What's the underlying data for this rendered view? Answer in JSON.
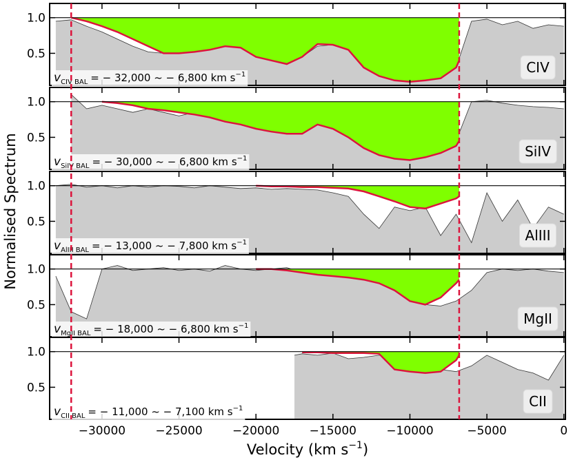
{
  "chart_data": [
    {
      "type": "area",
      "label": "CIV",
      "annotation": {
        "symbol": "v",
        "subscript": "CIV BAL",
        "text": "= − 32,000 ~ − 6,800 km s",
        "superscript": "−1"
      },
      "ylim": [
        0.05,
        1.2
      ],
      "yticks": [
        {
          "value": 0.5,
          "label": "0.5"
        },
        {
          "value": 1,
          "label": "1.0"
        }
      ],
      "continuum": 1,
      "vlines": [
        -32000,
        -6800
      ],
      "vline_color": "#dc143c",
      "spectrum_color": "#cccccc",
      "bal_color": "#7fff00",
      "bal_line_color": "#dc143c",
      "x": [
        -33000,
        -32000,
        -31000,
        -30000,
        -29000,
        -28000,
        -27000,
        -26000,
        -25000,
        -24000,
        -23000,
        -22000,
        -21000,
        -20000,
        -19000,
        -18000,
        -17000,
        -16000,
        -15000,
        -14000,
        -13000,
        -12000,
        -11000,
        -10000,
        -9000,
        -8000,
        -7000,
        -6000,
        -5000,
        -4000,
        -3000,
        -2000,
        -1000,
        0
      ],
      "values": [
        0.95,
        0.97,
        0.88,
        0.8,
        0.7,
        0.6,
        0.52,
        0.5,
        0.5,
        0.55,
        0.55,
        0.6,
        0.58,
        0.45,
        0.4,
        0.35,
        0.45,
        0.6,
        0.62,
        0.55,
        0.3,
        0.18,
        0.12,
        0.1,
        0.12,
        0.15,
        0.3,
        0.95,
        0.98,
        0.9,
        0.95,
        0.85,
        0.9,
        0.88
      ],
      "bal_x": [
        -32000,
        -31000,
        -30000,
        -29000,
        -28000,
        -27000,
        -26000,
        -25000,
        -24000,
        -23000,
        -22000,
        -21000,
        -20000,
        -19000,
        -18000,
        -17000,
        -16000,
        -15000,
        -14000,
        -13000,
        -12000,
        -11000,
        -10000,
        -9000,
        -8000,
        -7000,
        -6800
      ],
      "bal_values": [
        1.0,
        0.95,
        0.88,
        0.8,
        0.7,
        0.6,
        0.5,
        0.5,
        0.52,
        0.55,
        0.6,
        0.58,
        0.45,
        0.4,
        0.35,
        0.45,
        0.63,
        0.62,
        0.55,
        0.3,
        0.18,
        0.12,
        0.1,
        0.12,
        0.15,
        0.3,
        0.4
      ]
    },
    {
      "type": "area",
      "label": "SiIV",
      "annotation": {
        "symbol": "v",
        "subscript": "SiIV BAL",
        "text": "= − 30,000 ~ − 6,800 km s",
        "superscript": "−1"
      },
      "ylim": [
        0.05,
        1.2
      ],
      "yticks": [
        {
          "value": 0.5,
          "label": "0.5"
        },
        {
          "value": 1,
          "label": "1.0"
        }
      ],
      "continuum": 1,
      "spectrum_color": "#cccccc",
      "bal_color": "#7fff00",
      "bal_line_color": "#dc143c",
      "x": [
        -33000,
        -32000,
        -31000,
        -30000,
        -29000,
        -28000,
        -27000,
        -26000,
        -25000,
        -24000,
        -23000,
        -22000,
        -21000,
        -20000,
        -19000,
        -18000,
        -17000,
        -16000,
        -15000,
        -14000,
        -13000,
        -12000,
        -11000,
        -10000,
        -9000,
        -8000,
        -7000,
        -6000,
        -5000,
        -4000,
        -3000,
        -2000,
        -1000,
        0
      ],
      "values": [
        null,
        1.1,
        0.9,
        0.95,
        0.9,
        0.85,
        0.9,
        0.85,
        0.8,
        0.85,
        0.8,
        0.75,
        0.7,
        0.65,
        0.6,
        0.55,
        0.55,
        0.7,
        0.65,
        0.55,
        0.35,
        0.25,
        0.2,
        0.2,
        0.25,
        0.3,
        0.45,
        1.0,
        1.02,
        0.98,
        0.95,
        0.93,
        0.92,
        0.9
      ],
      "bal_x": [
        -30000,
        -29000,
        -28000,
        -27000,
        -26000,
        -25000,
        -24000,
        -23000,
        -22000,
        -21000,
        -20000,
        -19000,
        -18000,
        -17000,
        -16000,
        -15000,
        -14000,
        -13000,
        -12000,
        -11000,
        -10000,
        -9000,
        -8000,
        -7000,
        -6800
      ],
      "bal_values": [
        1.0,
        0.98,
        0.95,
        0.9,
        0.88,
        0.85,
        0.82,
        0.78,
        0.72,
        0.68,
        0.62,
        0.58,
        0.55,
        0.55,
        0.68,
        0.62,
        0.5,
        0.35,
        0.25,
        0.2,
        0.18,
        0.22,
        0.28,
        0.38,
        0.45
      ]
    },
    {
      "type": "area",
      "label": "AlIII",
      "ylabel": "Normalised Spectrum",
      "annotation": {
        "symbol": "v",
        "subscript": "AlIII BAL",
        "text": "= − 13,000 ~ − 7,800 km s",
        "superscript": "−1"
      },
      "ylim": [
        0.05,
        1.2
      ],
      "yticks": [
        {
          "value": 0.5,
          "label": "0.5"
        },
        {
          "value": 1,
          "label": "1.0"
        }
      ],
      "continuum": 1,
      "spectrum_color": "#cccccc",
      "bal_color": "#7fff00",
      "bal_line_color": "#dc143c",
      "x": [
        -33000,
        -32000,
        -31000,
        -30000,
        -29000,
        -28000,
        -27000,
        -26000,
        -25000,
        -24000,
        -23000,
        -22000,
        -21000,
        -20000,
        -19000,
        -18000,
        -17000,
        -16000,
        -15000,
        -14000,
        -13000,
        -12000,
        -11000,
        -10000,
        -9000,
        -8000,
        -7000,
        -6000,
        -5000,
        -4000,
        -3000,
        -2000,
        -1000,
        0
      ],
      "values": [
        1.0,
        1.02,
        0.98,
        1.0,
        0.97,
        1.0,
        0.98,
        1.0,
        0.99,
        0.97,
        1.0,
        0.98,
        0.96,
        0.97,
        0.95,
        0.96,
        0.95,
        0.94,
        0.9,
        0.85,
        0.6,
        0.4,
        0.7,
        0.65,
        0.7,
        0.3,
        0.6,
        0.2,
        0.9,
        0.5,
        0.8,
        0.4,
        0.7,
        0.6
      ],
      "bal_x": [
        -20000,
        -19000,
        -18000,
        -17000,
        -16000,
        -15000,
        -14000,
        -13000,
        -12000,
        -11000,
        -10000,
        -9000,
        -8000,
        -7000,
        -6800
      ],
      "bal_values": [
        1.0,
        0.99,
        0.99,
        0.98,
        0.98,
        0.97,
        0.96,
        0.92,
        0.85,
        0.78,
        0.7,
        0.68,
        0.75,
        0.82,
        0.85
      ]
    },
    {
      "type": "area",
      "label": "MgII",
      "annotation": {
        "symbol": "v",
        "subscript": "MgII BAL",
        "text": "= − 18,000 ~ − 6,800 km s",
        "superscript": "−1"
      },
      "ylim": [
        0.05,
        1.2
      ],
      "yticks": [
        {
          "value": 0.5,
          "label": "0.5"
        },
        {
          "value": 1,
          "label": "1.0"
        }
      ],
      "continuum": 1,
      "spectrum_color": "#cccccc",
      "bal_color": "#7fff00",
      "bal_line_color": "#dc143c",
      "x": [
        -33000,
        -32000,
        -31000,
        -30000,
        -29000,
        -28000,
        -27000,
        -26000,
        -25000,
        -24000,
        -23000,
        -22000,
        -21000,
        -20000,
        -19000,
        -18000,
        -17000,
        -16000,
        -15000,
        -14000,
        -13000,
        -12000,
        -11000,
        -10000,
        -9000,
        -8000,
        -7000,
        -6000,
        -5000,
        -4000,
        -3000,
        -2000,
        -1000,
        0
      ],
      "values": [
        0.9,
        0.4,
        0.3,
        1.0,
        1.05,
        0.98,
        1.0,
        1.02,
        0.98,
        1.0,
        0.97,
        1.05,
        1.0,
        0.98,
        1.0,
        1.02,
        0.95,
        0.92,
        0.9,
        0.88,
        0.85,
        0.82,
        0.78,
        0.6,
        0.5,
        0.48,
        0.55,
        0.7,
        0.95,
        1.0,
        0.98,
        1.0,
        0.97,
        0.95
      ],
      "bal_x": [
        -20000,
        -19000,
        -18000,
        -17000,
        -16000,
        -15000,
        -14000,
        -13000,
        -12000,
        -11000,
        -10000,
        -9000,
        -8000,
        -7000,
        -6800
      ],
      "bal_values": [
        1.0,
        1.0,
        0.98,
        0.95,
        0.92,
        0.9,
        0.88,
        0.85,
        0.8,
        0.7,
        0.55,
        0.5,
        0.6,
        0.8,
        0.85
      ]
    },
    {
      "type": "area",
      "label": "CII",
      "annotation": {
        "symbol": "v",
        "subscript": "CII BAL",
        "text": "= − 11,000 ~ − 7,100 km s",
        "superscript": "−1"
      },
      "ylim": [
        0.05,
        1.2
      ],
      "yticks": [
        {
          "value": 0.5,
          "label": "0.5"
        },
        {
          "value": 1,
          "label": "1.0"
        }
      ],
      "continuum": 1,
      "spectrum_color": "#cccccc",
      "bal_color": "#7fff00",
      "bal_line_color": "#dc143c",
      "x": [
        -17500,
        -17000,
        -16000,
        -15000,
        -14000,
        -13000,
        -12000,
        -11000,
        -10000,
        -9000,
        -8000,
        -7000,
        -6000,
        -5000,
        -4000,
        -3000,
        -2000,
        -1000,
        0
      ],
      "values": [
        0.95,
        0.97,
        0.95,
        0.98,
        0.9,
        0.92,
        0.95,
        0.93,
        0.9,
        0.8,
        0.75,
        0.72,
        0.8,
        0.95,
        0.85,
        0.75,
        0.7,
        0.6,
        0.95
      ],
      "bal_x": [
        -17000,
        -16000,
        -15000,
        -14000,
        -13000,
        -12000,
        -11000,
        -10000,
        -9000,
        -8000,
        -7000,
        -6800
      ],
      "bal_values": [
        0.99,
        0.99,
        0.98,
        0.98,
        0.98,
        0.97,
        0.75,
        0.72,
        0.7,
        0.72,
        0.88,
        0.95
      ],
      "xlim": [
        -33400,
        100
      ],
      "xticks": [
        {
          "value": -30000,
          "label": "−30000"
        },
        {
          "value": -25000,
          "label": "−25000"
        },
        {
          "value": -20000,
          "label": "−20000"
        },
        {
          "value": -15000,
          "label": "−15000"
        },
        {
          "value": -10000,
          "label": "−10000"
        },
        {
          "value": -5000,
          "label": "−5000"
        },
        0
      ],
      "xlabel": {
        "text": "Velocity (km s",
        "superscript": "−1",
        "close": ")"
      }
    }
  ]
}
